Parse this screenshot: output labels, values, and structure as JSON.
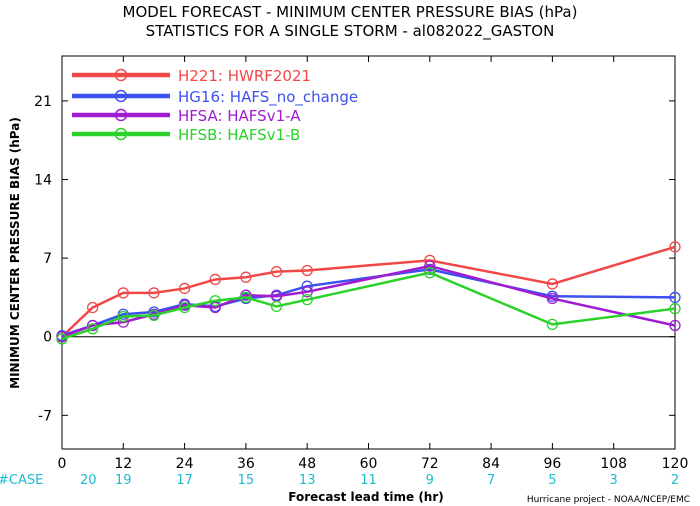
{
  "chart_data": {
    "type": "line",
    "title": "MODEL FORECAST - MINIMUM CENTER PRESSURE BIAS (hPa)",
    "subtitle": "STATISTICS FOR A SINGLE STORM - al082022_GASTON",
    "xlabel": "Forecast lead time (hr)",
    "ylabel": "MINIMUM CENTER PRESSURE BIAS (hPa)",
    "xlim": [
      0,
      120
    ],
    "ylim": [
      -10,
      25
    ],
    "xticks": [
      0,
      12,
      24,
      36,
      48,
      60,
      72,
      84,
      96,
      108,
      120
    ],
    "yticks": [
      -7,
      0,
      7,
      14,
      21
    ],
    "grid": false,
    "legend_position": "top-left",
    "case_label": "#CASE",
    "case_counts": [
      20,
      19,
      17,
      15,
      13,
      11,
      9,
      7,
      5,
      3,
      2
    ],
    "credit": "Hurricane project - NOAA/NCEP/EMC",
    "series": [
      {
        "name": "H221: HWRF2021",
        "color": "#f04848",
        "x": [
          0,
          6,
          12,
          18,
          24,
          30,
          36,
          42,
          48,
          72,
          96,
          120
        ],
        "y": [
          0.0,
          2.6,
          3.9,
          3.9,
          4.3,
          5.1,
          5.3,
          5.8,
          5.9,
          6.8,
          4.7,
          8.0
        ]
      },
      {
        "name": "HG16: HAFS_no_change",
        "color": "#3c50f0",
        "x": [
          0,
          6,
          12,
          18,
          24,
          30,
          36,
          42,
          48,
          72,
          96,
          120
        ],
        "y": [
          0.1,
          1.0,
          2.0,
          2.2,
          2.9,
          2.7,
          3.4,
          3.7,
          4.5,
          6.0,
          3.6,
          3.5
        ]
      },
      {
        "name": "HFSA: HAFSv1-A",
        "color": "#a01cd0",
        "x": [
          0,
          6,
          12,
          18,
          24,
          30,
          36,
          42,
          48,
          72,
          96,
          120
        ],
        "y": [
          0.0,
          1.0,
          1.3,
          2.0,
          2.8,
          2.6,
          3.7,
          3.6,
          4.0,
          6.3,
          3.4,
          1.0
        ]
      },
      {
        "name": "HFSB: HAFSv1-B",
        "color": "#2ad22a",
        "x": [
          0,
          6,
          12,
          18,
          24,
          30,
          36,
          42,
          48,
          72,
          96,
          120
        ],
        "y": [
          -0.2,
          0.7,
          1.8,
          1.9,
          2.6,
          3.2,
          3.5,
          2.7,
          3.3,
          5.7,
          1.1,
          2.5
        ]
      }
    ]
  }
}
